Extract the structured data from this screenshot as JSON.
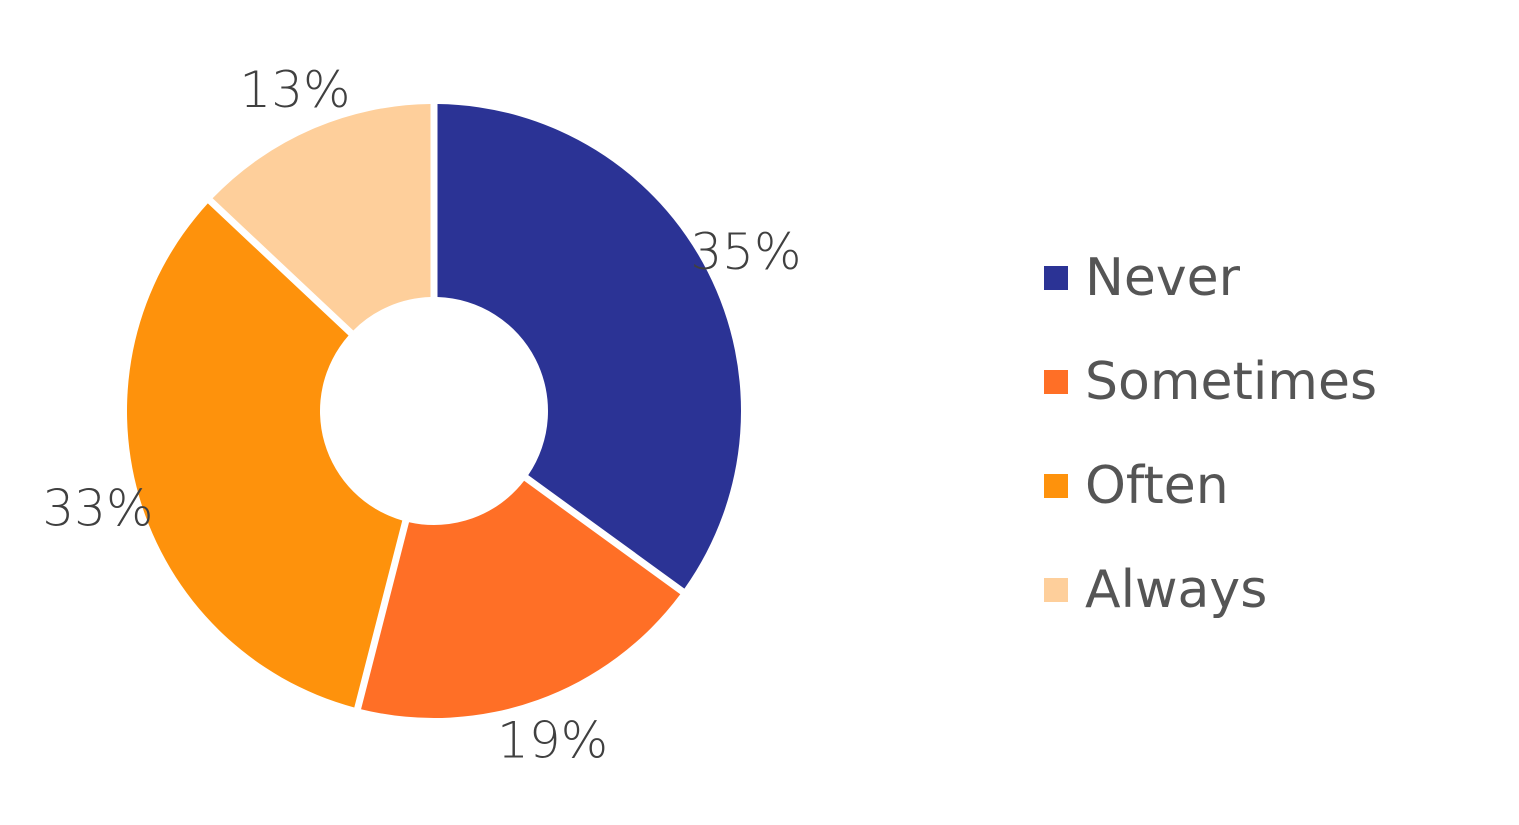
{
  "chart_data": {
    "type": "pie",
    "subtype": "donut",
    "categories": [
      "Never",
      "Sometimes",
      "Often",
      "Always"
    ],
    "values": [
      35,
      19,
      33,
      13
    ],
    "data_labels": [
      "35%",
      "19%",
      "33%",
      "13%"
    ],
    "colors": [
      "#2b3395",
      "#ff6f26",
      "#fe920c",
      "#fecf9b"
    ],
    "legend": {
      "position": "right",
      "entries": [
        "Never",
        "Sometimes",
        "Often",
        "Always"
      ]
    }
  }
}
